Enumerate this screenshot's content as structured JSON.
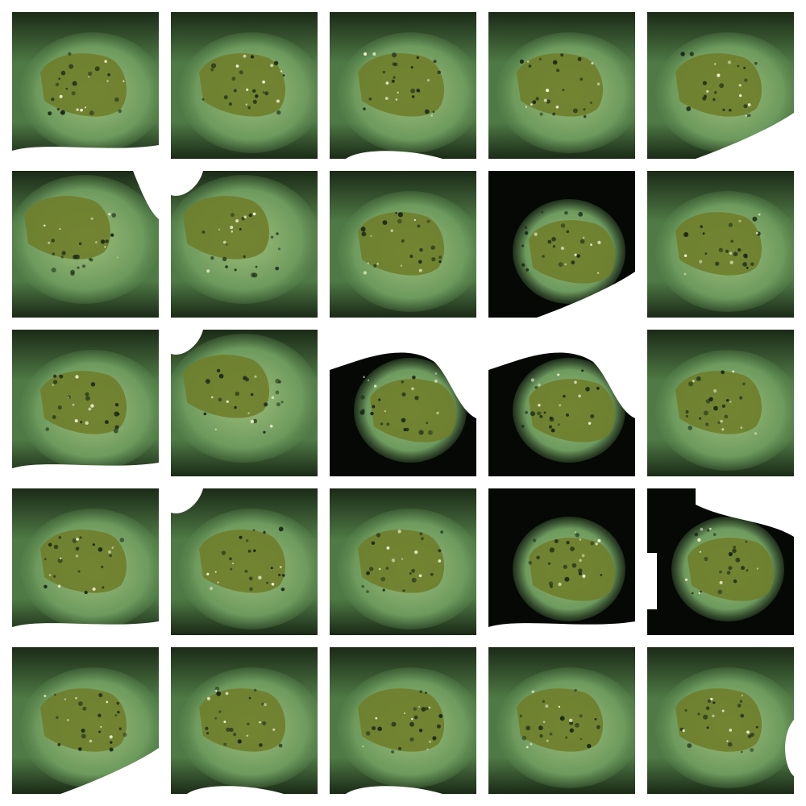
{
  "grid": {
    "rows": 5,
    "cols": 5,
    "description_colors": {
      "background_green": "#4f7a45",
      "dark_green": "#1b2a17",
      "blob_olive": "#6f7f2c",
      "blob_light": "#9fbf7a",
      "void_black": "#050805",
      "void_white": "#ffffff",
      "speck": "#f2f2d0"
    },
    "tiles": [
      {
        "variant": "green-blob",
        "white_patch": "bottom"
      },
      {
        "variant": "green-blob",
        "white_patch": "none"
      },
      {
        "variant": "green-blob",
        "white_patch": "bottom-small"
      },
      {
        "variant": "green-blob",
        "white_patch": "none"
      },
      {
        "variant": "green-blob",
        "white_patch": "bottom-right"
      },
      {
        "variant": "wide-blob",
        "white_patch": "top-right"
      },
      {
        "variant": "wide-blob",
        "white_patch": "top-left"
      },
      {
        "variant": "green-blob",
        "white_patch": "none"
      },
      {
        "variant": "dark-frame",
        "white_patch": "bottom-right"
      },
      {
        "variant": "green-blob",
        "white_patch": "none"
      },
      {
        "variant": "green-blob",
        "white_patch": "bottom"
      },
      {
        "variant": "wide-blob",
        "white_patch": "top-left"
      },
      {
        "variant": "dark-frame",
        "white_patch": "heavy"
      },
      {
        "variant": "dark-frame",
        "white_patch": "heavy"
      },
      {
        "variant": "green-blob",
        "white_patch": "none"
      },
      {
        "variant": "green-blob",
        "white_patch": "bottom"
      },
      {
        "variant": "green-blob",
        "white_patch": "top-left"
      },
      {
        "variant": "green-blob",
        "white_patch": "none"
      },
      {
        "variant": "dark-frame",
        "white_patch": "bottom"
      },
      {
        "variant": "dark-frame",
        "white_patch": "heavy-top-left"
      },
      {
        "variant": "green-blob",
        "white_patch": "bottom-right"
      },
      {
        "variant": "green-blob",
        "white_patch": "bottom-small"
      },
      {
        "variant": "green-blob",
        "white_patch": "bottom-small"
      },
      {
        "variant": "green-blob",
        "white_patch": "none"
      },
      {
        "variant": "green-blob",
        "white_patch": "right"
      }
    ]
  }
}
